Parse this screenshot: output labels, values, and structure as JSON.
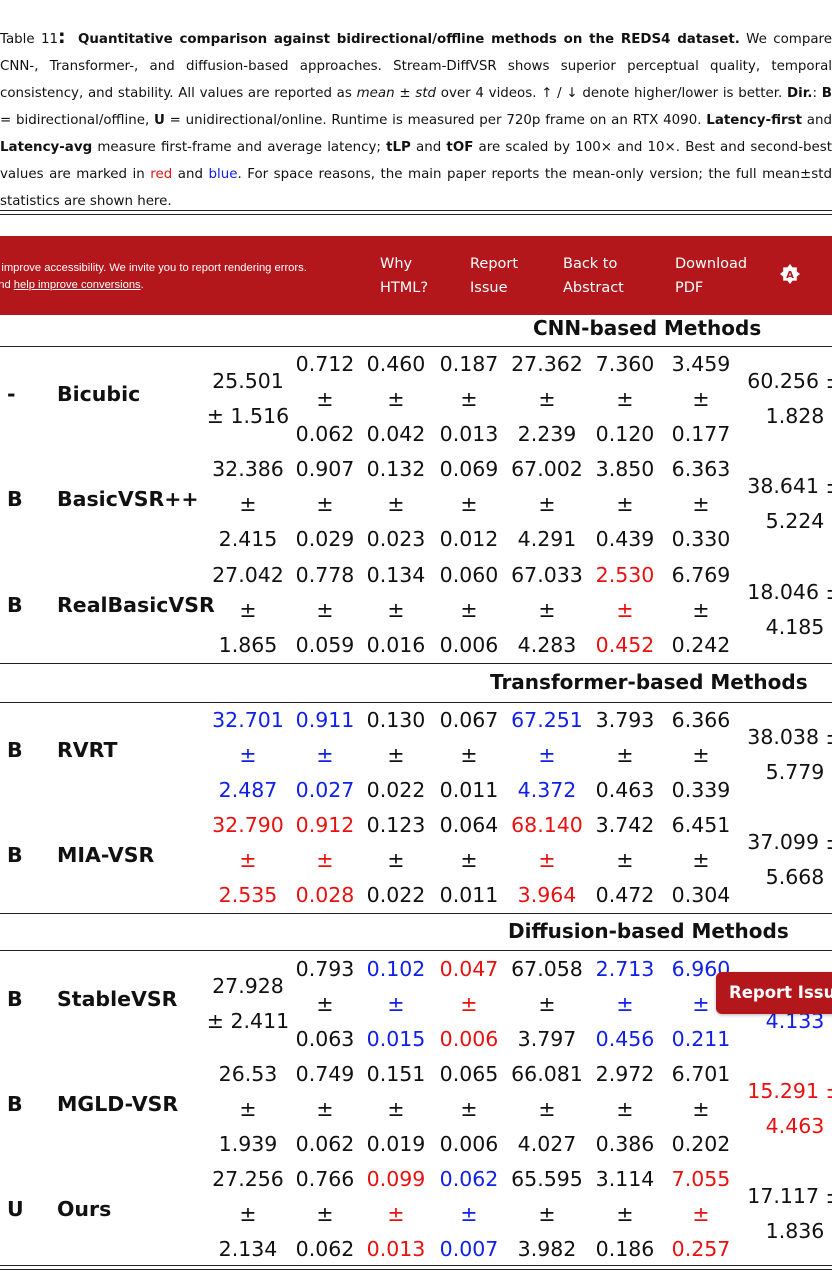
{
  "caption": {
    "label": "Table 11",
    "title": "Quantitative comparison against bidirectional/offline methods on the REDS4 dataset.",
    "text1": " We compare CNN-, Transformer-, and diffusion-based approaches. Stream-DiffVSR shows superior perceptual quality, temporal consistency, and stability. All values are reported as ",
    "meanstd": "mean ± std",
    "text2": " over 4 videos. ↑ / ↓ denote higher/lower is better. ",
    "dir_b": "Dir.",
    "text3": ": ",
    "b": "B",
    "text4": " = bidirectional/offline, ",
    "u": "U",
    "text5": " = unidirectional/online. Runtime is measured per 720p frame on an RTX 4090. ",
    "lat_first": "Latency-first",
    "text6": " and ",
    "lat_avg": "Latency-avg",
    "text7": " measure first-frame and average latency; ",
    "tlp": "tLP",
    "text8": " and ",
    "tof": "tOF",
    "text9": " are scaled by 100× and 10×. Best and second-best values are marked in ",
    "red_word": "red",
    "text10": " and ",
    "blue_word": "blue",
    "text11": ". For space reasons, the main paper reports the mean-only version; the full mean±std statistics are shown here."
  },
  "banner": {
    "message_part1": "o improve accessibility. We invite you to report rendering errors.",
    "message_part2": "and ",
    "message_link": "help improve conversions",
    "message_part3": ".",
    "nav": [
      {
        "line1": "Why",
        "line2": "HTML?"
      },
      {
        "line1": "Report",
        "line2": "Issue"
      },
      {
        "line1": "Back to",
        "line2": "Abstract"
      },
      {
        "line1": "Download",
        "line2": "PDF"
      }
    ],
    "icon": "accessibility-icon"
  },
  "groups": {
    "cnn": "CNN-based Methods",
    "transformer": "Transformer-based Methods",
    "diffusion": "Diffusion-based Methods"
  },
  "rows": [
    {
      "dir": "-",
      "method": "Bicubic",
      "c1": {
        "top": "25.501",
        "bot": "± 1.516"
      },
      "vals": [
        [
          "0.712",
          "±",
          "0.062"
        ],
        [
          "0.460",
          "±",
          "0.042"
        ],
        [
          "0.187",
          "±",
          "0.013"
        ],
        [
          "27.362",
          "±",
          "2.239"
        ],
        [
          "7.360",
          "±",
          "0.120"
        ],
        [
          "3.459",
          "±",
          "0.177"
        ]
      ],
      "last": {
        "top": "60.256 ±",
        "bot": "1.828"
      }
    },
    {
      "dir": "B",
      "method": "BasicVSR++",
      "c1": [
        "32.386",
        "±",
        "2.415"
      ],
      "vals": [
        [
          "0.907",
          "±",
          "0.029"
        ],
        [
          "0.132",
          "±",
          "0.023"
        ],
        [
          "0.069",
          "±",
          "0.012"
        ],
        [
          "67.002",
          "±",
          "4.291"
        ],
        [
          "3.850",
          "±",
          "0.439"
        ],
        [
          "6.363",
          "±",
          "0.330"
        ]
      ],
      "last": {
        "top": "38.641 ±",
        "bot": "5.224"
      }
    },
    {
      "dir": "B",
      "method": "RealBasicVSR",
      "c1": [
        "27.042",
        "±",
        "1.865"
      ],
      "vals": [
        [
          "0.778",
          "±",
          "0.059"
        ],
        [
          "0.134",
          "±",
          "0.016"
        ],
        [
          "0.060",
          "±",
          "0.006"
        ],
        [
          "67.033",
          "±",
          "4.283"
        ],
        [
          "2.530",
          "±",
          "0.452"
        ],
        [
          "6.769",
          "±",
          "0.242"
        ]
      ],
      "last": {
        "top": "18.046 ±",
        "bot": "4.185"
      }
    },
    {
      "dir": "B",
      "method": "RVRT",
      "c1": [
        "32.701",
        "±",
        "2.487"
      ],
      "vals": [
        [
          "0.911",
          "±",
          "0.027"
        ],
        [
          "0.130",
          "±",
          "0.022"
        ],
        [
          "0.067",
          "±",
          "0.011"
        ],
        [
          "67.251",
          "±",
          "4.372"
        ],
        [
          "3.793",
          "±",
          "0.463"
        ],
        [
          "6.366",
          "±",
          "0.339"
        ]
      ],
      "last": {
        "top": "38.038 ±",
        "bot": "5.779"
      }
    },
    {
      "dir": "B",
      "method": "MIA-VSR",
      "c1": [
        "32.790",
        "±",
        "2.535"
      ],
      "vals": [
        [
          "0.912",
          "±",
          "0.028"
        ],
        [
          "0.123",
          "±",
          "0.022"
        ],
        [
          "0.064",
          "±",
          "0.011"
        ],
        [
          "68.140",
          "±",
          "3.964"
        ],
        [
          "3.742",
          "±",
          "0.472"
        ],
        [
          "6.451",
          "±",
          "0.304"
        ]
      ],
      "last": {
        "top": "37.099 ±",
        "bot": "5.668"
      }
    },
    {
      "dir": "B",
      "method": "StableVSR",
      "c1": {
        "top": "27.928",
        "bot": "± 2.411"
      },
      "vals": [
        [
          "0.793",
          "±",
          "0.063"
        ],
        [
          "0.102",
          "±",
          "0.015"
        ],
        [
          "0.047",
          "±",
          "0.006"
        ],
        [
          "67.058",
          "±",
          "3.797"
        ],
        [
          "2.713",
          "±",
          "0.456"
        ],
        [
          "6.960",
          "±",
          "0.211"
        ]
      ],
      "last": {
        "top": "",
        "bot": "4.133"
      }
    },
    {
      "dir": "B",
      "method": "MGLD-VSR",
      "c1": [
        "26.53",
        "±",
        "1.939"
      ],
      "vals": [
        [
          "0.749",
          "±",
          "0.062"
        ],
        [
          "0.151",
          "±",
          "0.019"
        ],
        [
          "0.065",
          "±",
          "0.006"
        ],
        [
          "66.081",
          "±",
          "4.027"
        ],
        [
          "2.972",
          "±",
          "0.386"
        ],
        [
          "6.701",
          "±",
          "0.202"
        ]
      ],
      "last": {
        "top": "15.291 ±",
        "bot": "4.463"
      }
    },
    {
      "dir": "U",
      "method": "Ours",
      "c1": [
        "27.256",
        "±",
        "2.134"
      ],
      "vals": [
        [
          "0.766",
          "±",
          "0.062"
        ],
        [
          "0.099",
          "±",
          "0.013"
        ],
        [
          "0.062",
          "±",
          "0.007"
        ],
        [
          "65.595",
          "±",
          "3.982"
        ],
        [
          "3.114",
          "±",
          "0.186"
        ],
        [
          "7.055",
          "±",
          "0.257"
        ]
      ],
      "last": {
        "top": "17.117 ±",
        "bot": "1.836"
      }
    }
  ],
  "floating_button": "Report Issue",
  "colors": {
    "red": "#e8110f",
    "blue": "#1020e6",
    "banner": "#b3171c"
  }
}
